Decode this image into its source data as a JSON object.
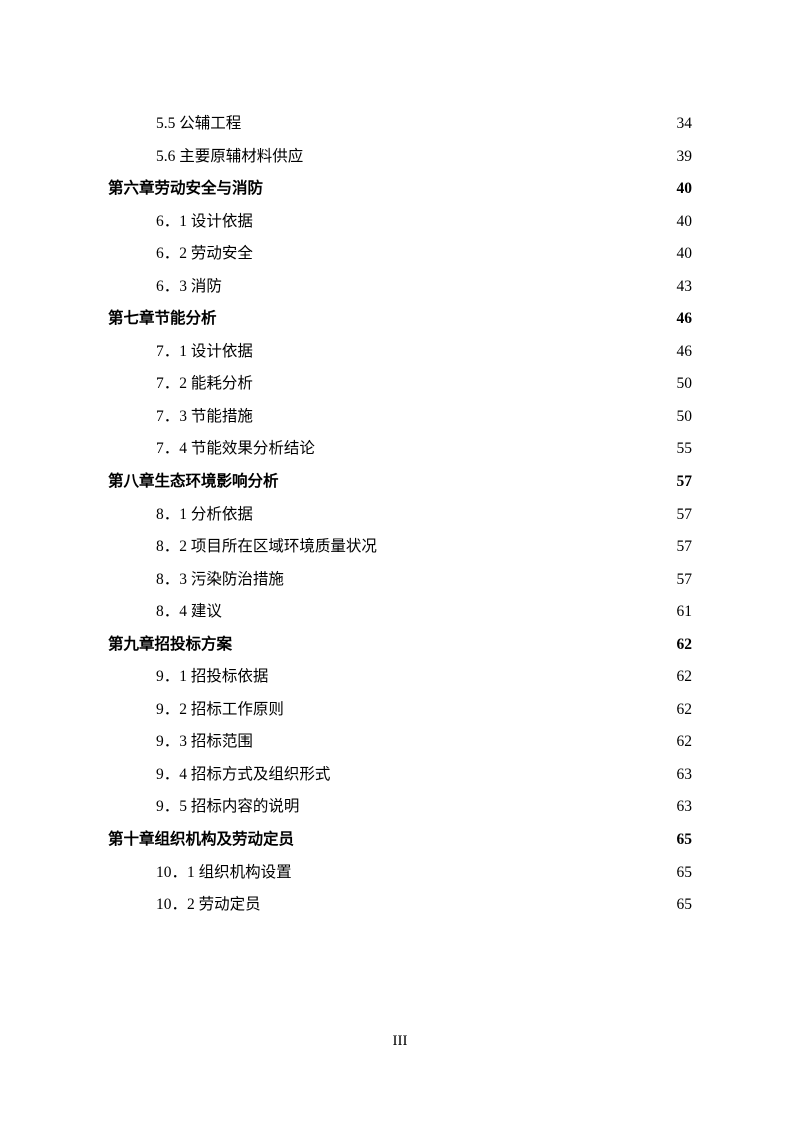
{
  "page_number": "III",
  "entries": [
    {
      "level": "section",
      "label": "5.5 公辅工程",
      "page": "34"
    },
    {
      "level": "section",
      "label": "5.6 主要原辅材料供应",
      "page": "39"
    },
    {
      "level": "chapter",
      "label": "第六章劳动安全与消防",
      "page": "40"
    },
    {
      "level": "section",
      "label": "6．1 设计依据",
      "page": "40"
    },
    {
      "level": "section",
      "label": "6．2 劳动安全",
      "page": "40"
    },
    {
      "level": "section",
      "label": "6．3 消防",
      "page": "43"
    },
    {
      "level": "chapter",
      "label": "第七章节能分析",
      "page": "46"
    },
    {
      "level": "section",
      "label": "7．1 设计依据",
      "page": "46"
    },
    {
      "level": "section",
      "label": "7．2 能耗分析",
      "page": "50"
    },
    {
      "level": "section",
      "label": "7．3 节能措施",
      "page": "50"
    },
    {
      "level": "section",
      "label": "7．4 节能效果分析结论",
      "page": "55"
    },
    {
      "level": "chapter",
      "label": "第八章生态环境影响分析",
      "page": "57"
    },
    {
      "level": "section",
      "label": "8．1 分析依据",
      "page": "57"
    },
    {
      "level": "section",
      "label": "8．2 项目所在区域环境质量状况",
      "page": "57"
    },
    {
      "level": "section",
      "label": "8．3 污染防治措施",
      "page": "57"
    },
    {
      "level": "section",
      "label": "8．4 建议",
      "page": "61"
    },
    {
      "level": "chapter",
      "label": "第九章招投标方案",
      "page": "62"
    },
    {
      "level": "section",
      "label": "9．1 招投标依据",
      "page": "62"
    },
    {
      "level": "section",
      "label": "9．2 招标工作原则",
      "page": "62"
    },
    {
      "level": "section",
      "label": "9．3 招标范围",
      "page": "62"
    },
    {
      "level": "section",
      "label": "9．4 招标方式及组织形式",
      "page": "63"
    },
    {
      "level": "section",
      "label": "9．5 招标内容的说明",
      "page": "63"
    },
    {
      "level": "chapter",
      "label": "第十章组织机构及劳动定员",
      "page": "65"
    },
    {
      "level": "section",
      "label": "10．1 组织机构设置",
      "page": "65"
    },
    {
      "level": "section",
      "label": "10．2 劳动定员",
      "page": "65"
    }
  ]
}
